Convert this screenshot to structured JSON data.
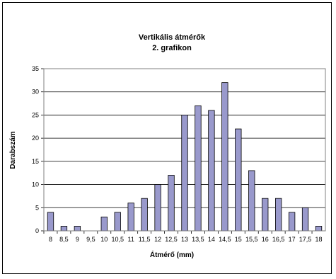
{
  "chart_data": {
    "type": "bar",
    "title": "Vertikális átmérők",
    "subtitle": "2. grafikon",
    "xlabel": "Átmérő (mm)",
    "ylabel": "Darabszám",
    "ylim": [
      0,
      35
    ],
    "yticks": [
      "0",
      "5",
      "10",
      "15",
      "20",
      "25",
      "30",
      "35"
    ],
    "grid": true,
    "legend": "none",
    "bar_color": "#9999CC",
    "categories": [
      "8",
      "8,5",
      "9",
      "9,5",
      "10",
      "10,5",
      "11",
      "11,5",
      "12",
      "12,5",
      "13",
      "13,5",
      "14",
      "14,5",
      "15",
      "15,5",
      "16",
      "16,5",
      "17",
      "17,5",
      "18"
    ],
    "values": [
      4,
      1,
      1,
      0,
      3,
      4,
      6,
      7,
      10,
      12,
      25,
      27,
      26,
      32,
      22,
      13,
      7,
      7,
      4,
      5,
      1
    ]
  }
}
